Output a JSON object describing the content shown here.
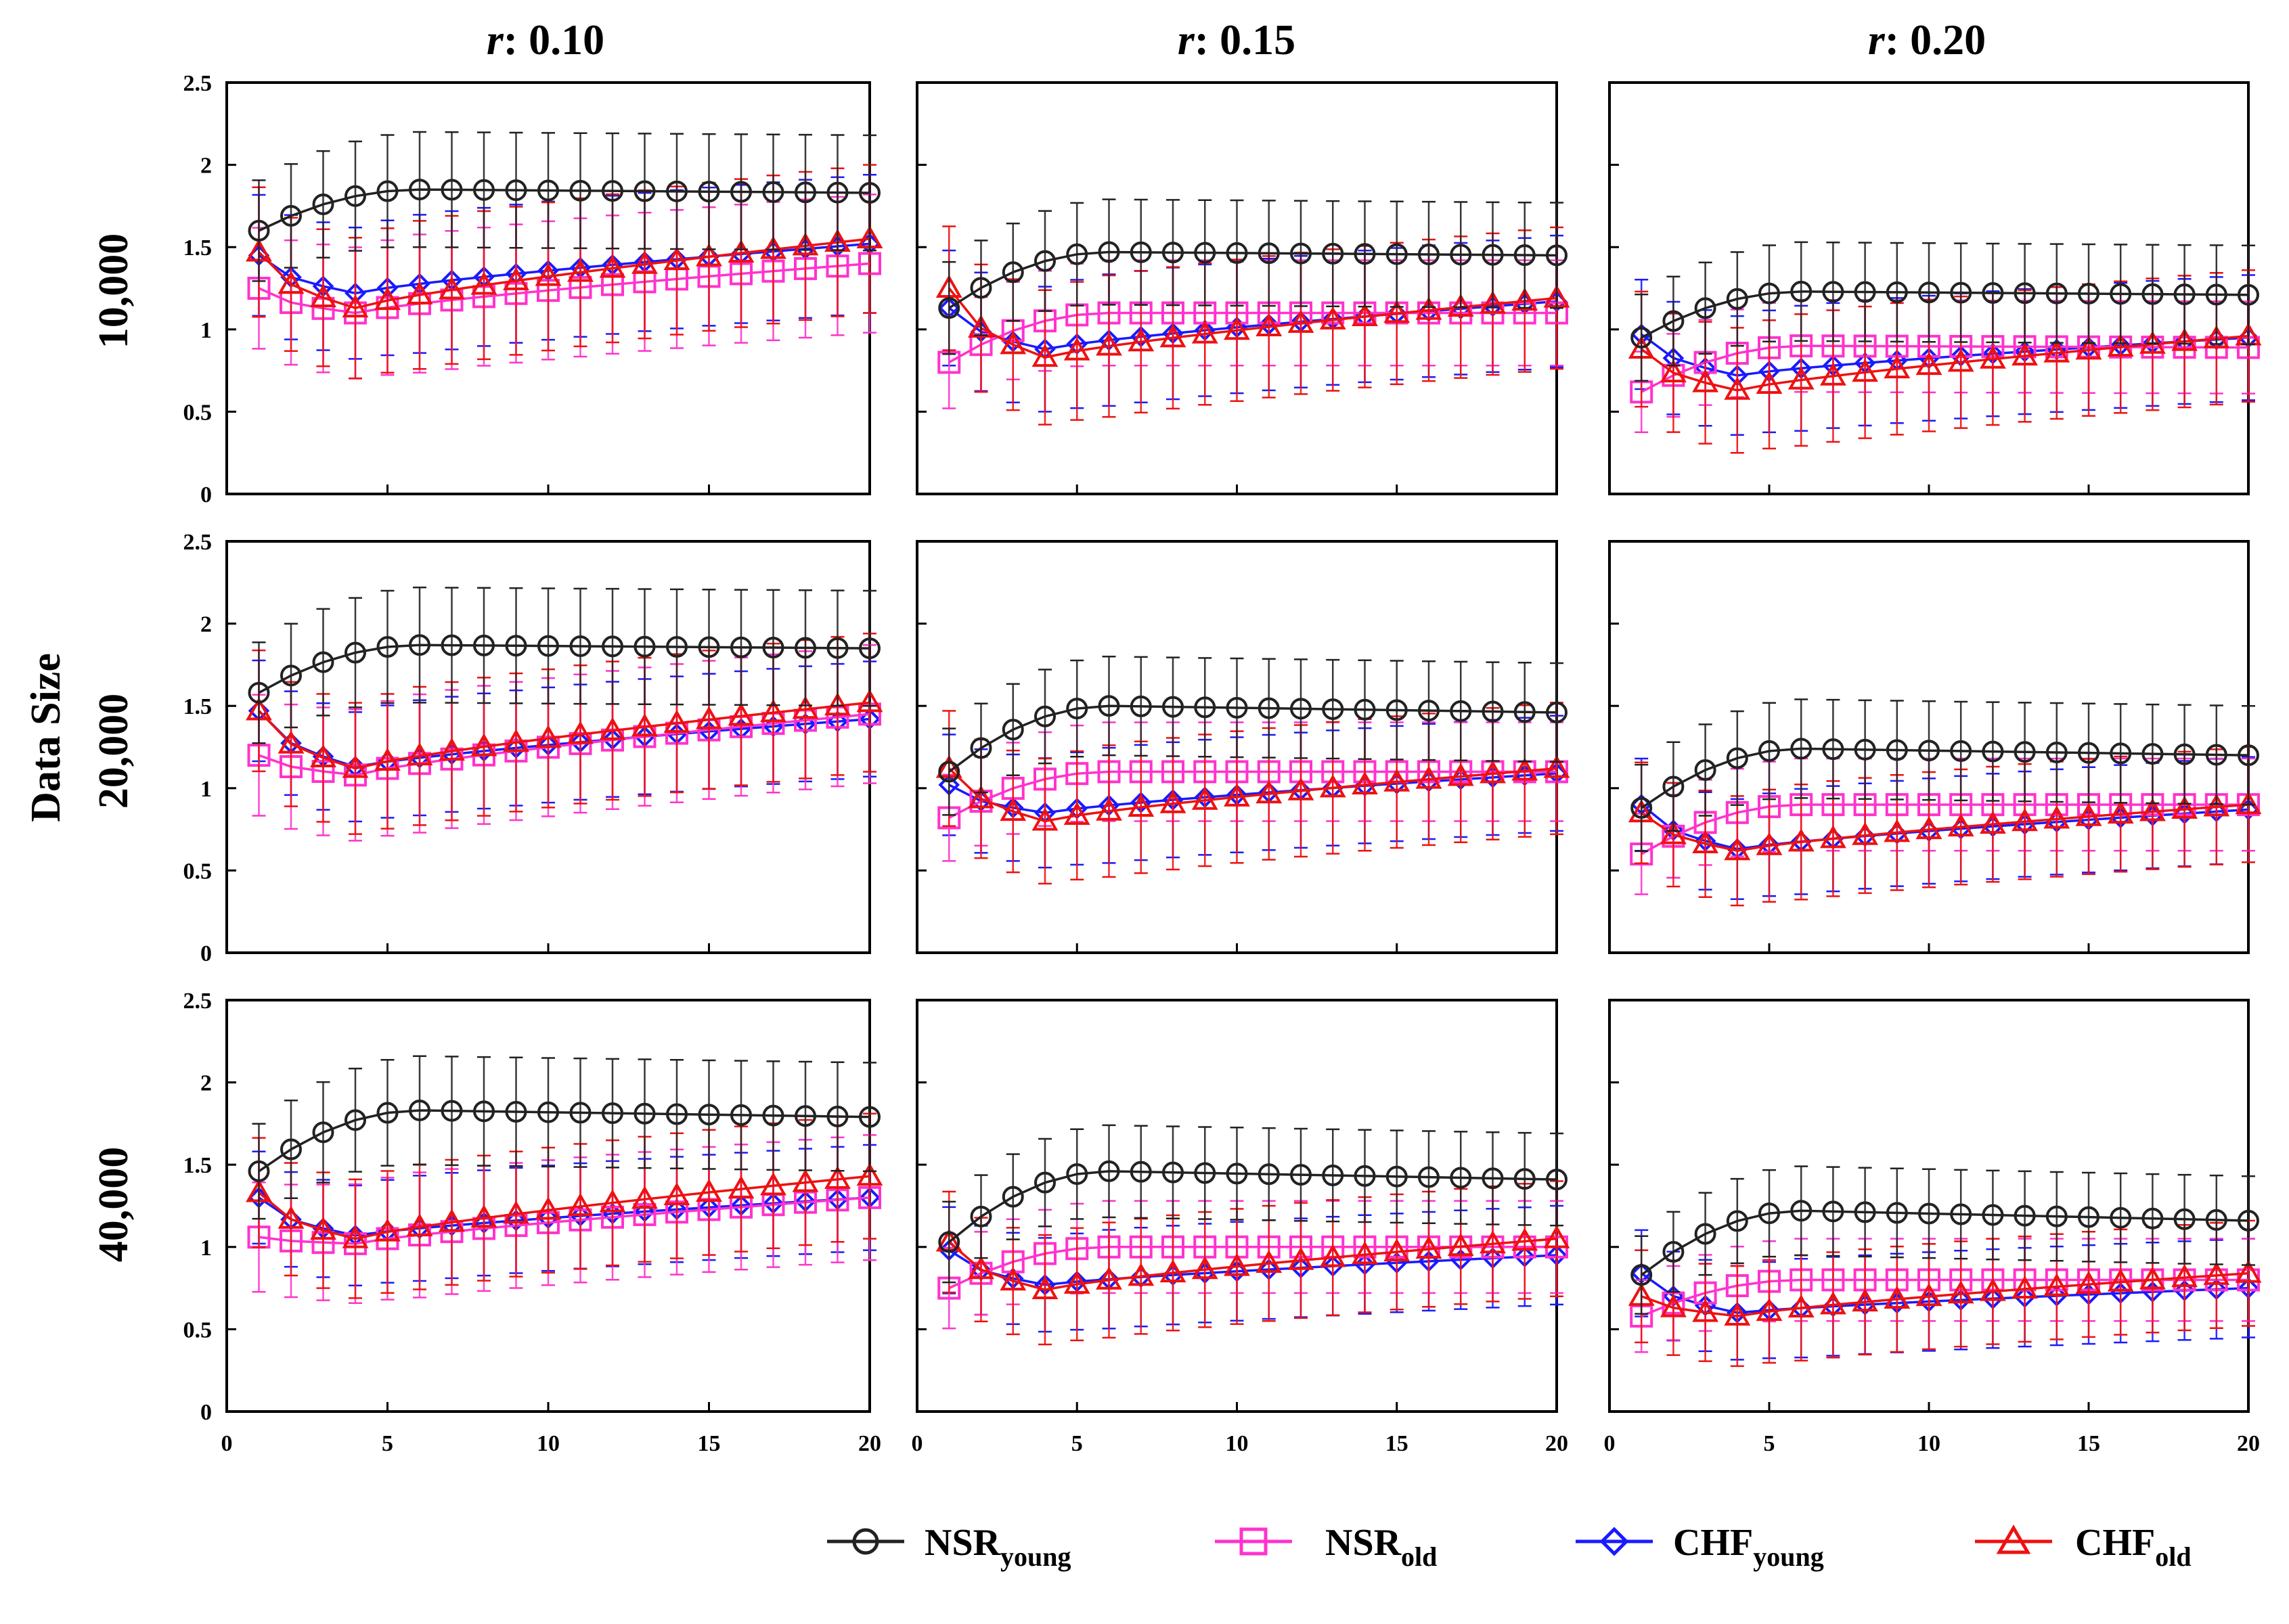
{
  "figure": {
    "row_header": "Data Size",
    "column_prefix": "r",
    "column_titles": [
      ": 0.10",
      ": 0.15",
      ": 0.20"
    ],
    "row_labels": [
      "10,000",
      "20,000",
      "40,000"
    ],
    "y_tick_labels": [
      "0",
      "0.5",
      "1",
      "1.5",
      "2",
      "2.5"
    ],
    "x_tick_labels": [
      "0",
      "5",
      "10",
      "15",
      "20"
    ]
  },
  "legend": {
    "entries": [
      {
        "base": "NSR",
        "sub": "young",
        "color": "#222222",
        "marker": "circle"
      },
      {
        "base": "NSR",
        "sub": "old",
        "color": "#ff33cc",
        "marker": "square"
      },
      {
        "base": "CHF",
        "sub": "young",
        "color": "#1a1aff",
        "marker": "diamond"
      },
      {
        "base": "CHF",
        "sub": "old",
        "color": "#ee1111",
        "marker": "triangle"
      }
    ]
  },
  "chart_data": {
    "type": "line",
    "x": [
      1,
      2,
      3,
      4,
      5,
      6,
      7,
      8,
      9,
      10,
      11,
      12,
      13,
      14,
      15,
      16,
      17,
      18,
      19,
      20
    ],
    "xlim": [
      0,
      20
    ],
    "ylim": [
      0,
      2.5
    ],
    "series_names": [
      "NSR young",
      "NSR old",
      "CHF young",
      "CHF old"
    ],
    "series_colors": [
      "#222222",
      "#ff33cc",
      "#1a1aff",
      "#ee1111"
    ],
    "panels": [
      {
        "row": 0,
        "col": 0,
        "data_size": "10,000",
        "r": "0.10",
        "series": [
          {
            "name": "NSR young",
            "start": 1.6,
            "min": 1.6,
            "peak": 1.85,
            "end": 1.83,
            "err": 0.35
          },
          {
            "name": "NSR old",
            "start": 1.25,
            "min": 1.1,
            "peak": 1.4,
            "end": 1.4,
            "err": 0.42
          },
          {
            "name": "CHF young",
            "start": 1.45,
            "min": 1.22,
            "peak": 1.52,
            "end": 1.52,
            "err": 0.42
          },
          {
            "name": "CHF old",
            "start": 1.47,
            "min": 1.13,
            "peak": 1.55,
            "end": 1.55,
            "err": 0.45
          }
        ]
      },
      {
        "row": 0,
        "col": 1,
        "data_size": "10,000",
        "r": "0.15",
        "series": [
          {
            "name": "NSR young",
            "start": 1.13,
            "min": 1.13,
            "peak": 1.47,
            "end": 1.45,
            "err": 0.32
          },
          {
            "name": "NSR old",
            "start": 0.8,
            "min": 0.8,
            "peak": 1.1,
            "end": 1.1,
            "err": 0.32
          },
          {
            "name": "CHF young",
            "start": 1.13,
            "min": 0.88,
            "peak": 1.17,
            "end": 1.17,
            "err": 0.4
          },
          {
            "name": "CHF old",
            "start": 1.25,
            "min": 0.83,
            "peak": 1.19,
            "end": 1.19,
            "err": 0.43
          }
        ]
      },
      {
        "row": 0,
        "col": 2,
        "data_size": "10,000",
        "r": "0.20",
        "series": [
          {
            "name": "NSR young",
            "start": 0.95,
            "min": 0.95,
            "peak": 1.23,
            "end": 1.21,
            "err": 0.3
          },
          {
            "name": "NSR old",
            "start": 0.62,
            "min": 0.62,
            "peak": 0.9,
            "end": 0.89,
            "err": 0.28
          },
          {
            "name": "CHF young",
            "start": 0.97,
            "min": 0.72,
            "peak": 0.95,
            "end": 0.95,
            "err": 0.38
          },
          {
            "name": "CHF old",
            "start": 0.88,
            "min": 0.63,
            "peak": 0.96,
            "end": 0.96,
            "err": 0.4
          }
        ]
      },
      {
        "row": 1,
        "col": 0,
        "data_size": "20,000",
        "r": "0.10",
        "series": [
          {
            "name": "NSR young",
            "start": 1.58,
            "min": 1.58,
            "peak": 1.87,
            "end": 1.85,
            "err": 0.35
          },
          {
            "name": "NSR old",
            "start": 1.2,
            "min": 1.08,
            "peak": 1.45,
            "end": 1.45,
            "err": 0.42
          },
          {
            "name": "CHF young",
            "start": 1.47,
            "min": 1.13,
            "peak": 1.42,
            "end": 1.42,
            "err": 0.35
          },
          {
            "name": "CHF old",
            "start": 1.47,
            "min": 1.12,
            "peak": 1.52,
            "end": 1.52,
            "err": 0.42
          }
        ]
      },
      {
        "row": 1,
        "col": 1,
        "data_size": "20,000",
        "r": "0.15",
        "series": [
          {
            "name": "NSR young",
            "start": 1.1,
            "min": 1.1,
            "peak": 1.5,
            "end": 1.46,
            "err": 0.3
          },
          {
            "name": "NSR old",
            "start": 0.82,
            "min": 0.82,
            "peak": 1.1,
            "end": 1.1,
            "err": 0.3
          },
          {
            "name": "CHF young",
            "start": 1.02,
            "min": 0.85,
            "peak": 1.09,
            "end": 1.09,
            "err": 0.35
          },
          {
            "name": "CHF old",
            "start": 1.12,
            "min": 0.8,
            "peak": 1.12,
            "end": 1.12,
            "err": 0.4
          }
        ]
      },
      {
        "row": 1,
        "col": 2,
        "data_size": "20,000",
        "r": "0.20",
        "series": [
          {
            "name": "NSR young",
            "start": 0.88,
            "min": 0.88,
            "peak": 1.24,
            "end": 1.2,
            "err": 0.3
          },
          {
            "name": "NSR old",
            "start": 0.6,
            "min": 0.6,
            "peak": 0.9,
            "end": 0.9,
            "err": 0.28
          },
          {
            "name": "CHF young",
            "start": 0.9,
            "min": 0.63,
            "peak": 0.87,
            "end": 0.87,
            "err": 0.32
          },
          {
            "name": "CHF old",
            "start": 0.85,
            "min": 0.62,
            "peak": 0.9,
            "end": 0.9,
            "err": 0.35
          }
        ]
      },
      {
        "row": 2,
        "col": 0,
        "data_size": "40,000",
        "r": "0.10",
        "series": [
          {
            "name": "NSR young",
            "start": 1.46,
            "min": 1.46,
            "peak": 1.83,
            "end": 1.79,
            "err": 0.33
          },
          {
            "name": "NSR old",
            "start": 1.06,
            "min": 1.02,
            "peak": 1.3,
            "end": 1.3,
            "err": 0.38
          },
          {
            "name": "CHF young",
            "start": 1.3,
            "min": 1.07,
            "peak": 1.3,
            "end": 1.3,
            "err": 0.32
          },
          {
            "name": "CHF old",
            "start": 1.33,
            "min": 1.05,
            "peak": 1.43,
            "end": 1.43,
            "err": 0.38
          }
        ]
      },
      {
        "row": 2,
        "col": 1,
        "data_size": "40,000",
        "r": "0.15",
        "series": [
          {
            "name": "NSR young",
            "start": 1.03,
            "min": 1.03,
            "peak": 1.46,
            "end": 1.41,
            "err": 0.28
          },
          {
            "name": "NSR old",
            "start": 0.75,
            "min": 0.75,
            "peak": 1.0,
            "end": 1.0,
            "err": 0.28
          },
          {
            "name": "CHF young",
            "start": 0.98,
            "min": 0.77,
            "peak": 0.95,
            "end": 0.95,
            "err": 0.3
          },
          {
            "name": "CHF old",
            "start": 1.03,
            "min": 0.74,
            "peak": 1.05,
            "end": 1.05,
            "err": 0.35
          }
        ]
      },
      {
        "row": 2,
        "col": 2,
        "data_size": "40,000",
        "r": "0.20",
        "series": [
          {
            "name": "NSR young",
            "start": 0.83,
            "min": 0.83,
            "peak": 1.22,
            "end": 1.16,
            "err": 0.27
          },
          {
            "name": "NSR old",
            "start": 0.58,
            "min": 0.58,
            "peak": 0.8,
            "end": 0.8,
            "err": 0.25
          },
          {
            "name": "CHF young",
            "start": 0.84,
            "min": 0.6,
            "peak": 0.75,
            "end": 0.75,
            "err": 0.3
          },
          {
            "name": "CHF old",
            "start": 0.7,
            "min": 0.58,
            "peak": 0.84,
            "end": 0.84,
            "err": 0.32
          }
        ]
      }
    ]
  }
}
